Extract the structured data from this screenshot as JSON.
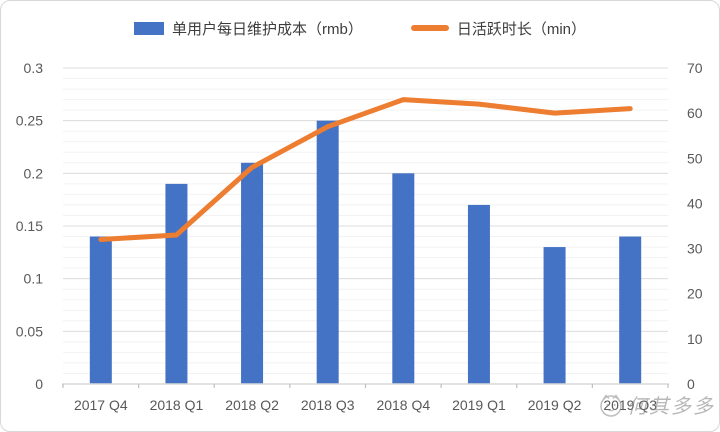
{
  "chart_data": {
    "type": "combo",
    "categories": [
      "2017 Q4",
      "2018 Q1",
      "2018 Q2",
      "2018 Q3",
      "2018 Q4",
      "2019 Q1",
      "2019 Q2",
      "2019 Q3"
    ],
    "series": [
      {
        "name": "单用户每日维护成本（rmb）",
        "type": "bar",
        "axis": "left",
        "color": "#4472C4",
        "values": [
          0.14,
          0.19,
          0.21,
          0.25,
          0.2,
          0.17,
          0.13,
          0.14
        ]
      },
      {
        "name": "日活跃时长（min）",
        "type": "line",
        "axis": "right",
        "color": "#ED7D31",
        "values": [
          32,
          33,
          48,
          57,
          63,
          62,
          60,
          61
        ]
      }
    ],
    "left_axis": {
      "min": 0,
      "max": 0.3,
      "step": 0.05,
      "minor_step": 0.01,
      "ticks": [
        "0",
        "0.05",
        "0.1",
        "0.15",
        "0.2",
        "0.25",
        "0.3"
      ]
    },
    "right_axis": {
      "min": 0,
      "max": 70,
      "step": 10,
      "ticks": [
        "0",
        "10",
        "20",
        "30",
        "40",
        "50",
        "60",
        "70"
      ]
    },
    "grid": true,
    "legend_position": "top",
    "title": "",
    "xlabel": "",
    "ylabel": ""
  },
  "colors": {
    "bar": "#4472C4",
    "line": "#ED7D31",
    "axis_text": "#595959",
    "legend_text": "#3d3d3d",
    "grid_minor": "#f2f2f2",
    "grid_major": "#dcdcdc",
    "axis_line": "#d9d9d9",
    "tick": "#bfbfbf"
  },
  "watermark": {
    "text": "何其多多",
    "icon": "mascot-circle-icon"
  }
}
